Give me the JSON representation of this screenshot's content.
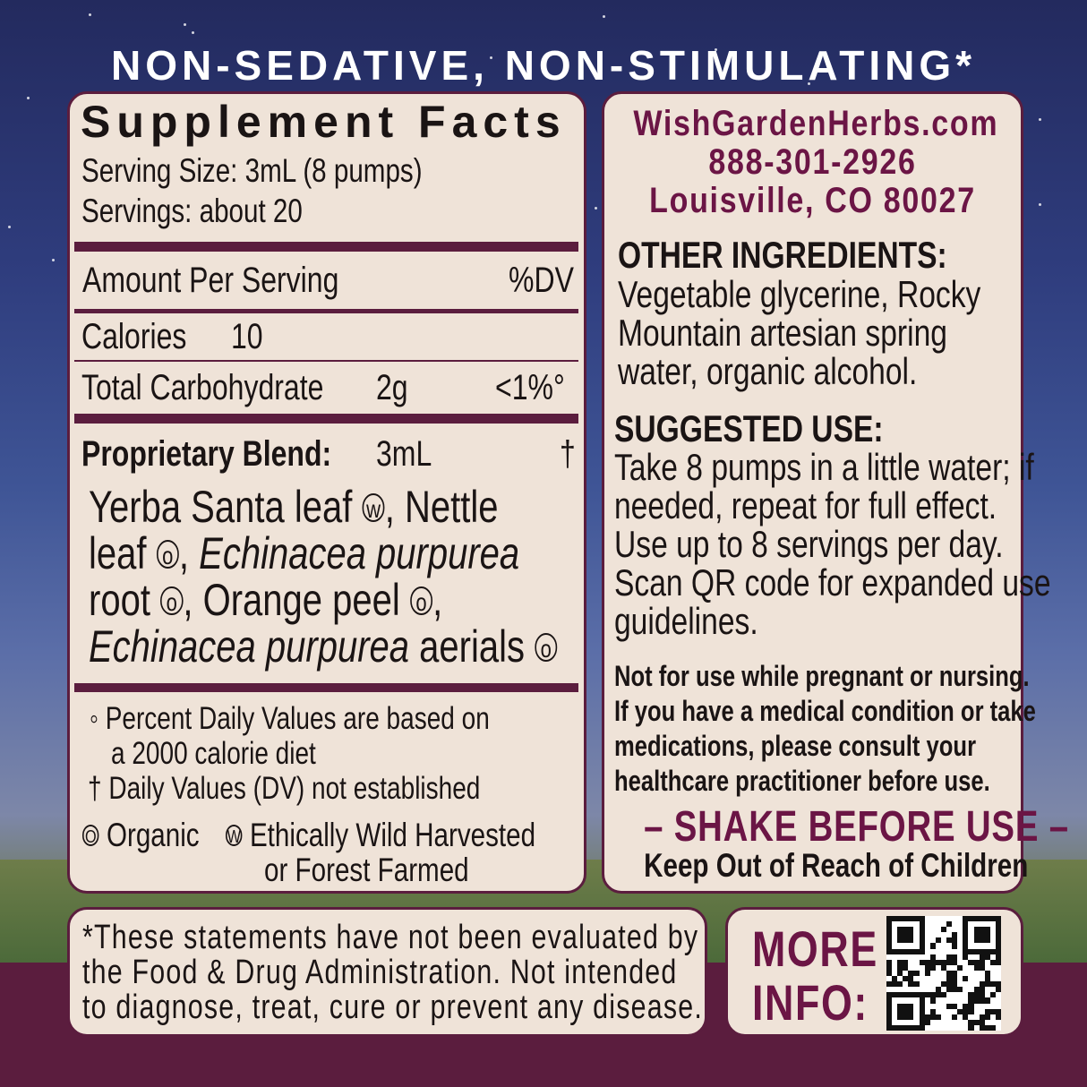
{
  "banner": "NON-SEDATIVE, NON-STIMULATING*",
  "facts": {
    "title": "Supplement Facts",
    "serving_size": "Serving Size: 3mL (8 pumps)",
    "servings": "Servings: about 20",
    "amount_per_serving": "Amount Per Serving",
    "dv_header": "%DV",
    "rows": [
      {
        "label": "Calories",
        "amount": "10",
        "dv": ""
      },
      {
        "label": "Total Carbohydrate",
        "amount": "2g",
        "dv": "<1%°"
      }
    ],
    "blend": {
      "label": "Proprietary Blend:",
      "amount": "3mL",
      "dv": "†"
    },
    "ingredients": [
      [
        {
          "text": "Yerba Santa leaf ",
          "italic": false
        },
        {
          "mark": "w"
        },
        {
          "text": ", Nettle",
          "italic": false
        }
      ],
      [
        {
          "text": "leaf ",
          "italic": false
        },
        {
          "mark": "o"
        },
        {
          "text": ", ",
          "italic": false
        },
        {
          "text": "Echinacea purpurea",
          "italic": true
        }
      ],
      [
        {
          "text": "root ",
          "italic": false
        },
        {
          "mark": "o"
        },
        {
          "text": ", Orange peel ",
          "italic": false
        },
        {
          "mark": "o"
        },
        {
          "text": ",",
          "italic": false
        }
      ],
      [
        {
          "text": "Echinacea purpurea",
          "italic": true
        },
        {
          "text": " aerials ",
          "italic": false
        },
        {
          "mark": "o"
        }
      ]
    ],
    "footnotes": [
      "◦ Percent Daily Values are based on",
      "a 2000 calorie diet",
      "† Daily Values (DV) not established"
    ],
    "legend_organic": "Organic",
    "legend_wild": "Ethically Wild Harvested",
    "legend_wild2": "or Forest Farmed"
  },
  "contact": {
    "website": "WishGardenHerbs.com",
    "phone": "888-301-2926",
    "address": "Louisville, CO 80027"
  },
  "other_ingredients": {
    "heading": "OTHER INGREDIENTS:",
    "lines": [
      "Vegetable glycerine, Rocky",
      "Mountain artesian spring",
      "water, organic alcohol."
    ]
  },
  "suggested_use": {
    "heading": "SUGGESTED USE:",
    "lines": [
      "Take 8 pumps in a little water; if",
      "needed, repeat for full effect.",
      "Use up to 8 servings per day.",
      "Scan QR code for expanded use",
      "guidelines."
    ]
  },
  "warning": [
    "Not for use while pregnant or nursing.",
    "If you have a medical condition or take",
    "medications, please consult your",
    "healthcare practitioner before use."
  ],
  "shake": "– SHAKE BEFORE USE –",
  "keep_out": "Keep Out of Reach of Children",
  "disclaimer": [
    "*These statements have not been evaluated by",
    "the Food & Drug Administration. Not intended",
    "to diagnose, treat, cure or prevent any disease."
  ],
  "more_info": [
    "MORE",
    "INFO:"
  ],
  "colors": {
    "maroon": "#5b1d3e",
    "text_maroon": "#6b1545",
    "panel": "#efe3d8"
  }
}
